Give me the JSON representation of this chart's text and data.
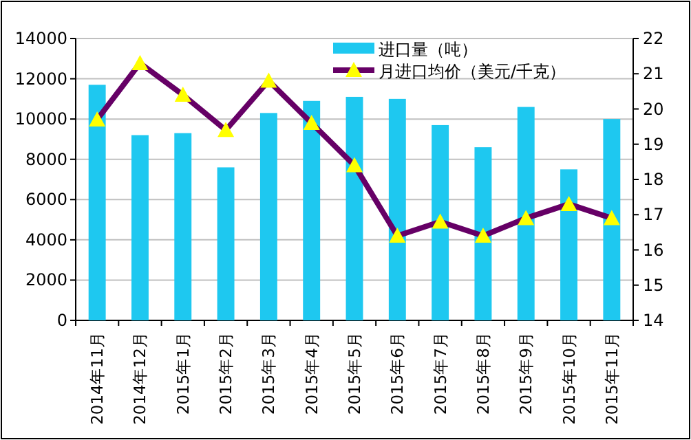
{
  "chart_data": {
    "type": "bar",
    "categories": [
      "2014年11月",
      "2014年12月",
      "2015年1月",
      "2015年2月",
      "2015年3月",
      "2015年4月",
      "2015年5月",
      "2015年6月",
      "2015年7月",
      "2015年8月",
      "2015年9月",
      "2015年10月",
      "2015年11月"
    ],
    "series": [
      {
        "name": "进口量（吨）",
        "color": "#1ec8f0",
        "values": [
          11700,
          9200,
          9300,
          7600,
          10300,
          10900,
          11100,
          11000,
          9700,
          8600,
          10600,
          7500,
          10000
        ]
      },
      {
        "name": "月进口均价（美元/千克）",
        "type": "line",
        "axis": "y2",
        "color": "#660066",
        "marker": "triangle",
        "values": [
          19.7,
          21.3,
          20.4,
          19.4,
          20.8,
          19.6,
          18.4,
          16.4,
          16.8,
          16.4,
          16.9,
          17.3,
          16.9
        ]
      }
    ],
    "ylim": [
      0,
      14000
    ],
    "yticks": [
      0,
      2000,
      4000,
      6000,
      8000,
      10000,
      12000,
      14000
    ],
    "y2lim": [
      14,
      22
    ],
    "y2ticks": [
      14,
      15,
      16,
      17,
      18,
      19,
      20,
      21,
      22
    ],
    "grid": "y",
    "legend": "top right"
  }
}
